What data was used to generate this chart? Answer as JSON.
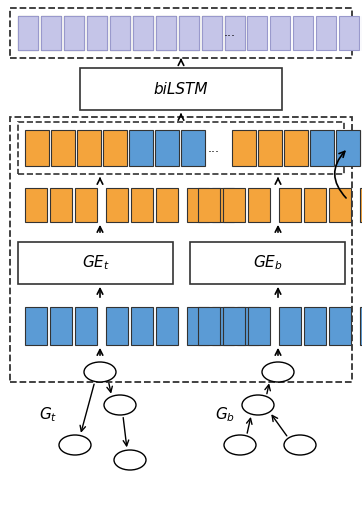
{
  "fig_width": 3.62,
  "fig_height": 5.12,
  "dpi": 100,
  "bg_color": "#ffffff",
  "blue_color": "#5b9bd5",
  "orange_color": "#f4a43c",
  "purple_fill": "#c5c5e8",
  "purple_edge": "#9999cc",
  "black": "#000000"
}
